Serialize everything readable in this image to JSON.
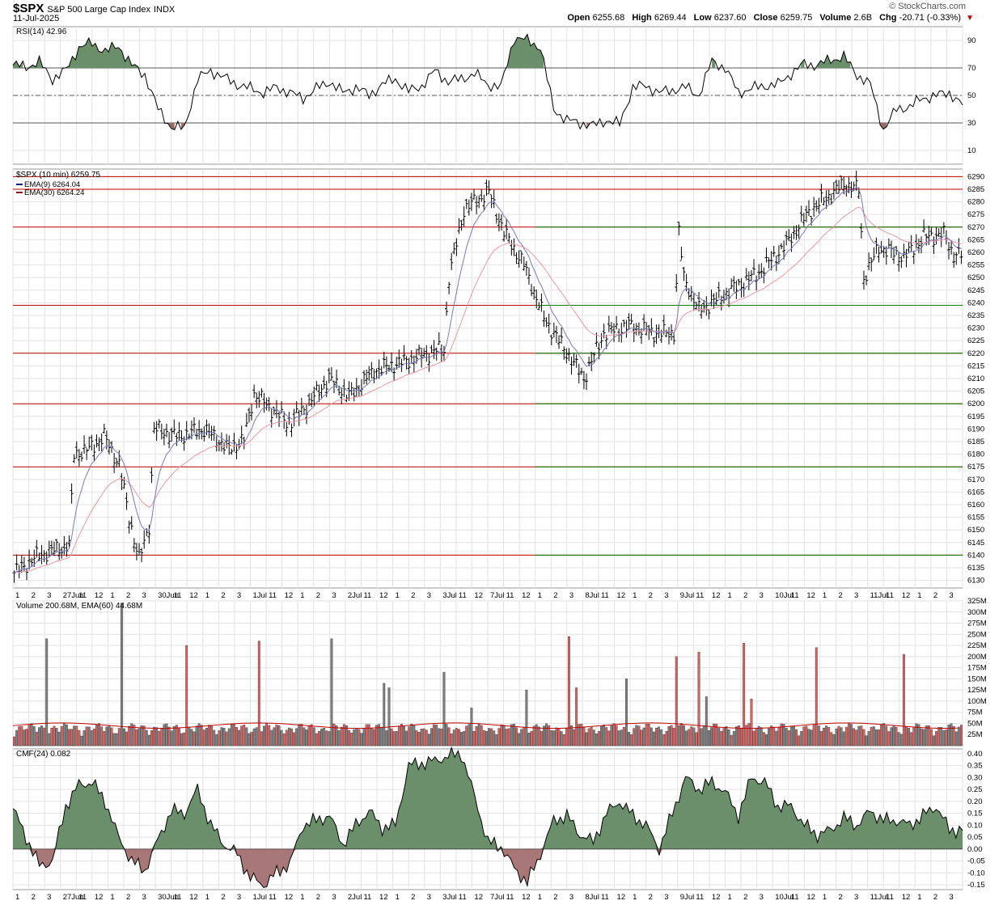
{
  "header": {
    "symbol": "$SPX",
    "name": "S&P 500 Large Cap Index",
    "exchange": "INDX",
    "date": "11-Jul-2025",
    "brand": "© StockCharts.com",
    "open_label": "Open",
    "open": "6255.68",
    "high_label": "High",
    "high": "6269.44",
    "low_label": "Low",
    "low": "6237.60",
    "close_label": "Close",
    "close": "6259.75",
    "volume_label": "Volume",
    "volume": "2.6B",
    "chg_label": "Chg",
    "chg": "-20.71 (-0.33%)"
  },
  "colors": {
    "up": "#000000",
    "down": "#000000",
    "ema9": "#7a7ab8",
    "ema30": "#e89aa2",
    "rsi_fill": "#6b8e6b",
    "rsi_fill_low": "#9c6b6b",
    "cmf_pos": "#6b8e6b",
    "cmf_neg": "#a87878",
    "vol_up": "#808080",
    "vol_down": "#e06060",
    "vol_ema": "#c00000",
    "support": "#008000",
    "resistance": "#c00000"
  },
  "chart_data": [
    {
      "type": "line",
      "title": "RSI(14) 42.96",
      "ylim": [
        0,
        100
      ],
      "yticks": [
        10,
        30,
        50,
        70,
        90
      ],
      "overbought": 70,
      "oversold": 30,
      "midline": 50,
      "x": [
        0,
        6,
        12,
        18,
        24,
        30,
        36,
        42,
        48,
        54,
        60,
        66,
        72,
        78,
        84,
        90,
        96,
        102,
        108,
        114,
        120,
        126,
        132,
        138,
        144,
        150,
        156,
        162,
        168,
        174,
        180,
        186,
        192,
        198,
        204,
        210,
        216,
        222,
        228,
        234,
        240,
        246,
        252,
        258,
        264,
        270,
        276,
        282,
        288,
        294,
        300,
        306,
        312,
        318,
        324,
        330,
        336,
        342,
        348,
        354,
        360,
        366,
        372,
        378,
        384,
        390,
        396,
        402,
        408,
        414,
        420,
        426,
        432
      ],
      "values": [
        72,
        71,
        74,
        62,
        68,
        85,
        88,
        82,
        86,
        72,
        65,
        40,
        27,
        26,
        62,
        68,
        63,
        58,
        55,
        52,
        56,
        52,
        48,
        55,
        60,
        52,
        56,
        50,
        58,
        62,
        53,
        57,
        68,
        60,
        62,
        66,
        58,
        56,
        92,
        90,
        85,
        40,
        32,
        30,
        28,
        32,
        29,
        56,
        57,
        52,
        54,
        56,
        50,
        75,
        70,
        52,
        55,
        57,
        58,
        66,
        73,
        72,
        76,
        78,
        65,
        58,
        25,
        40,
        42,
        48,
        50,
        52,
        43
      ],
      "xlabel": "",
      "ylabel": ""
    },
    {
      "type": "bar",
      "title": "$SPX (10 min) 6259.75",
      "legend": [
        "EMA(9) 6264.04",
        "EMA(30) 6264.24"
      ],
      "ylim": [
        6127,
        6293
      ],
      "yticks": [
        6130,
        6135,
        6140,
        6145,
        6150,
        6155,
        6160,
        6165,
        6170,
        6175,
        6180,
        6185,
        6190,
        6195,
        6200,
        6205,
        6210,
        6215,
        6220,
        6225,
        6230,
        6235,
        6240,
        6245,
        6250,
        6255,
        6260,
        6265,
        6270,
        6275,
        6280,
        6285,
        6290
      ],
      "resistance_lines": [
        6290,
        6285,
        6270,
        6239,
        6220,
        6200,
        6175,
        6140
      ],
      "support_lines": [
        6270,
        6239,
        6220,
        6200,
        6175,
        6140
      ],
      "x_tick_labels": [
        "1",
        "2",
        "3",
        "27Jun",
        "11",
        "12",
        "1",
        "2",
        "3",
        "30Jun",
        "11",
        "12",
        "1",
        "2",
        "3",
        "1Jul",
        "11",
        "12",
        "1",
        "2",
        "3",
        "2Jul",
        "11",
        "12",
        "1",
        "2",
        "3",
        "3Jul",
        "11",
        "12",
        "7Jul",
        "11",
        "12",
        "1",
        "2",
        "3",
        "8Jul",
        "11",
        "12",
        "1",
        "2",
        "3",
        "9Jul",
        "11",
        "12",
        "1",
        "2",
        "3",
        "10Jul",
        "11",
        "12",
        "1",
        "2",
        "3",
        "11Jul",
        "11",
        "12",
        "1",
        "2",
        "3"
      ],
      "price_path": [
        [
          0,
          6133
        ],
        [
          10,
          6140
        ],
        [
          22,
          6144
        ],
        [
          24,
          6180
        ],
        [
          30,
          6182
        ],
        [
          36,
          6187
        ],
        [
          42,
          6176
        ],
        [
          46,
          6155
        ],
        [
          50,
          6138
        ],
        [
          54,
          6152
        ],
        [
          56,
          6190
        ],
        [
          66,
          6187
        ],
        [
          76,
          6190
        ],
        [
          86,
          6182
        ],
        [
          92,
          6186
        ],
        [
          96,
          6204
        ],
        [
          110,
          6192
        ],
        [
          116,
          6198
        ],
        [
          126,
          6210
        ],
        [
          134,
          6203
        ],
        [
          144,
          6213
        ],
        [
          160,
          6218
        ],
        [
          172,
          6222
        ],
        [
          174,
          6250
        ],
        [
          180,
          6277
        ],
        [
          190,
          6284
        ],
        [
          196,
          6268
        ],
        [
          204,
          6255
        ],
        [
          212,
          6234
        ],
        [
          220,
          6222
        ],
        [
          228,
          6210
        ],
        [
          236,
          6228
        ],
        [
          246,
          6231
        ],
        [
          256,
          6228
        ],
        [
          264,
          6228
        ],
        [
          266,
          6268
        ],
        [
          268,
          6250
        ],
        [
          274,
          6237
        ],
        [
          284,
          6243
        ],
        [
          298,
          6252
        ],
        [
          308,
          6262
        ],
        [
          318,
          6276
        ],
        [
          332,
          6287
        ],
        [
          338,
          6285
        ],
        [
          340,
          6250
        ],
        [
          346,
          6262
        ],
        [
          356,
          6258
        ],
        [
          364,
          6266
        ],
        [
          372,
          6267
        ],
        [
          376,
          6259
        ]
      ],
      "ema9_final": 6264.04,
      "ema30_final": 6264.24,
      "xlabel": "",
      "ylabel": ""
    },
    {
      "type": "bar",
      "title": "Volume 200.68M, EMA(60) 44.68M",
      "ylim": [
        0,
        325
      ],
      "yticks": [
        25,
        50,
        75,
        100,
        125,
        150,
        175,
        200,
        225,
        250,
        275,
        300,
        325
      ],
      "ytick_labels": [
        "25M",
        "50M",
        "75M",
        "100M",
        "125M",
        "150M",
        "175M",
        "200M",
        "225M",
        "250M",
        "275M",
        "300M",
        "325M"
      ],
      "spikes": [
        [
          13,
          240,
          "up"
        ],
        [
          43,
          320,
          "up"
        ],
        [
          69,
          225,
          "down"
        ],
        [
          98,
          235,
          "down"
        ],
        [
          127,
          240,
          "up"
        ],
        [
          148,
          140,
          "up"
        ],
        [
          150,
          130,
          "up"
        ],
        [
          172,
          165,
          "up"
        ],
        [
          183,
          85,
          "up"
        ],
        [
          205,
          125,
          "up"
        ],
        [
          222,
          245,
          "down"
        ],
        [
          225,
          130,
          "down"
        ],
        [
          245,
          150,
          "up"
        ],
        [
          265,
          200,
          "down"
        ],
        [
          274,
          210,
          "down"
        ],
        [
          277,
          110,
          "up"
        ],
        [
          292,
          230,
          "down"
        ],
        [
          295,
          105,
          "down"
        ],
        [
          321,
          220,
          "down"
        ],
        [
          356,
          205,
          "down"
        ]
      ],
      "ema_level": 45,
      "xlabel": "",
      "ylabel": ""
    },
    {
      "type": "area",
      "title": "CMF(24) 0.082",
      "ylim": [
        -0.17,
        0.42
      ],
      "yticks": [
        -0.15,
        -0.1,
        -0.05,
        0.0,
        0.05,
        0.1,
        0.15,
        0.2,
        0.25,
        0.3,
        0.35,
        0.4
      ],
      "ytick_labels": [
        "-0.15",
        "-0.10",
        "-0.05",
        "0.00",
        "0.05",
        "0.10",
        "0.15",
        "0.20",
        "0.25",
        "0.30",
        "0.35",
        "0.40"
      ],
      "x": [
        0,
        6,
        12,
        18,
        24,
        30,
        36,
        42,
        48,
        54,
        60,
        66,
        72,
        78,
        84,
        90,
        96,
        102,
        108,
        114,
        120,
        126,
        132,
        138,
        144,
        150,
        156,
        162,
        168,
        174,
        180,
        186,
        192,
        198,
        204,
        210,
        216,
        222,
        228,
        234,
        240,
        246,
        252,
        258,
        264,
        270,
        276,
        282,
        288,
        294,
        300,
        306,
        312,
        318,
        324,
        330,
        336,
        342,
        348,
        354,
        360,
        366,
        372,
        378,
        384,
        390,
        396,
        402,
        408,
        414,
        420,
        426,
        432
      ],
      "values": [
        0.17,
        0.05,
        -0.07,
        -0.05,
        0.18,
        0.27,
        0.28,
        0.2,
        0.05,
        -0.05,
        -0.09,
        0.04,
        0.16,
        0.15,
        0.25,
        0.1,
        0.02,
        -0.02,
        -0.12,
        -0.15,
        -0.1,
        -0.06,
        0.1,
        0.12,
        0.14,
        0.02,
        0.1,
        0.16,
        0.09,
        0.1,
        0.35,
        0.36,
        0.37,
        0.39,
        0.4,
        0.22,
        0.03,
        0.01,
        -0.08,
        -0.14,
        -0.02,
        0.12,
        0.14,
        0.06,
        0.03,
        0.15,
        0.2,
        0.14,
        0.1,
        0.0,
        0.15,
        0.3,
        0.25,
        0.28,
        0.24,
        0.14,
        0.3,
        0.28,
        0.18,
        0.18,
        0.1,
        0.06,
        0.08,
        0.13,
        0.1,
        0.16,
        0.12,
        0.12,
        0.1,
        0.14,
        0.18,
        0.08,
        0.082
      ],
      "xlabel": "",
      "ylabel": ""
    }
  ]
}
